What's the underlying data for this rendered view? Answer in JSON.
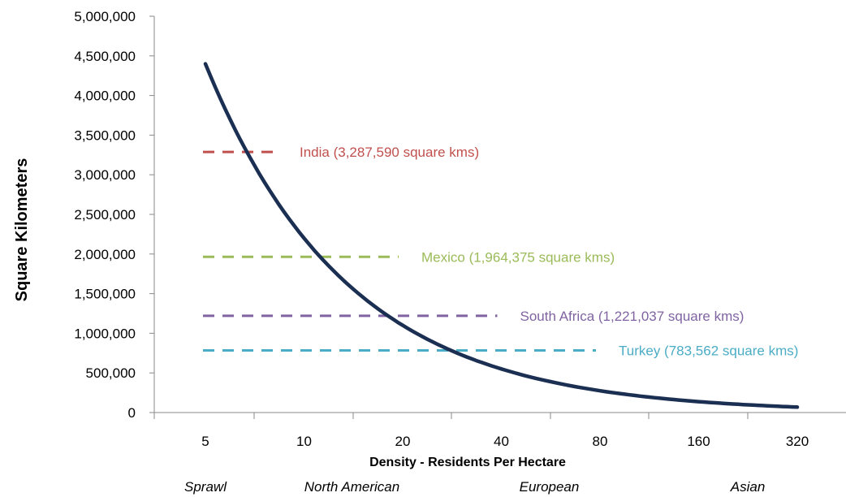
{
  "chart_data": {
    "type": "line",
    "xlabel": "Density - Residents Per Hectare",
    "ylabel": "Square Kilometers",
    "x_scale": "log2",
    "categories": [
      "5",
      "10",
      "20",
      "40",
      "80",
      "160",
      "320"
    ],
    "ylim": [
      0,
      5000000
    ],
    "y_tick_labels": [
      "0",
      "500,000",
      "1,000,000",
      "1,500,000",
      "2,000,000",
      "2,500,000",
      "3,000,000",
      "3,500,000",
      "4,000,000",
      "4,500,000",
      "5,000,000"
    ],
    "grid": false,
    "series": [
      {
        "x": [
          5,
          10,
          20,
          40,
          80,
          160,
          320
        ],
        "y": [
          4400000,
          2200000,
          1100000,
          550000,
          275000,
          137500,
          68750
        ],
        "color": "#1b2f52"
      }
    ],
    "reference_lines": [
      {
        "label": "India (3,287,590 square kms)",
        "y": 3287590,
        "x_end": 8.5,
        "color": "#c0504d"
      },
      {
        "label": "Mexico (1,964,375 square kms)",
        "y": 1964375,
        "x_end": 20,
        "color": "#9bbb59"
      },
      {
        "label": "South Africa (1,221,037 square kms)",
        "y": 1221037,
        "x_end": 40,
        "color": "#8064a2"
      },
      {
        "label": "Turkey (783,562 square kms)",
        "y": 783562,
        "x_end": 80,
        "color": "#4bacc6"
      }
    ],
    "zones": [
      {
        "label": "Sprawl",
        "x": 5
      },
      {
        "label": "North American",
        "x": 14
      },
      {
        "label": "European",
        "x": 56
      },
      {
        "label": "Asian",
        "x": 226
      }
    ]
  }
}
